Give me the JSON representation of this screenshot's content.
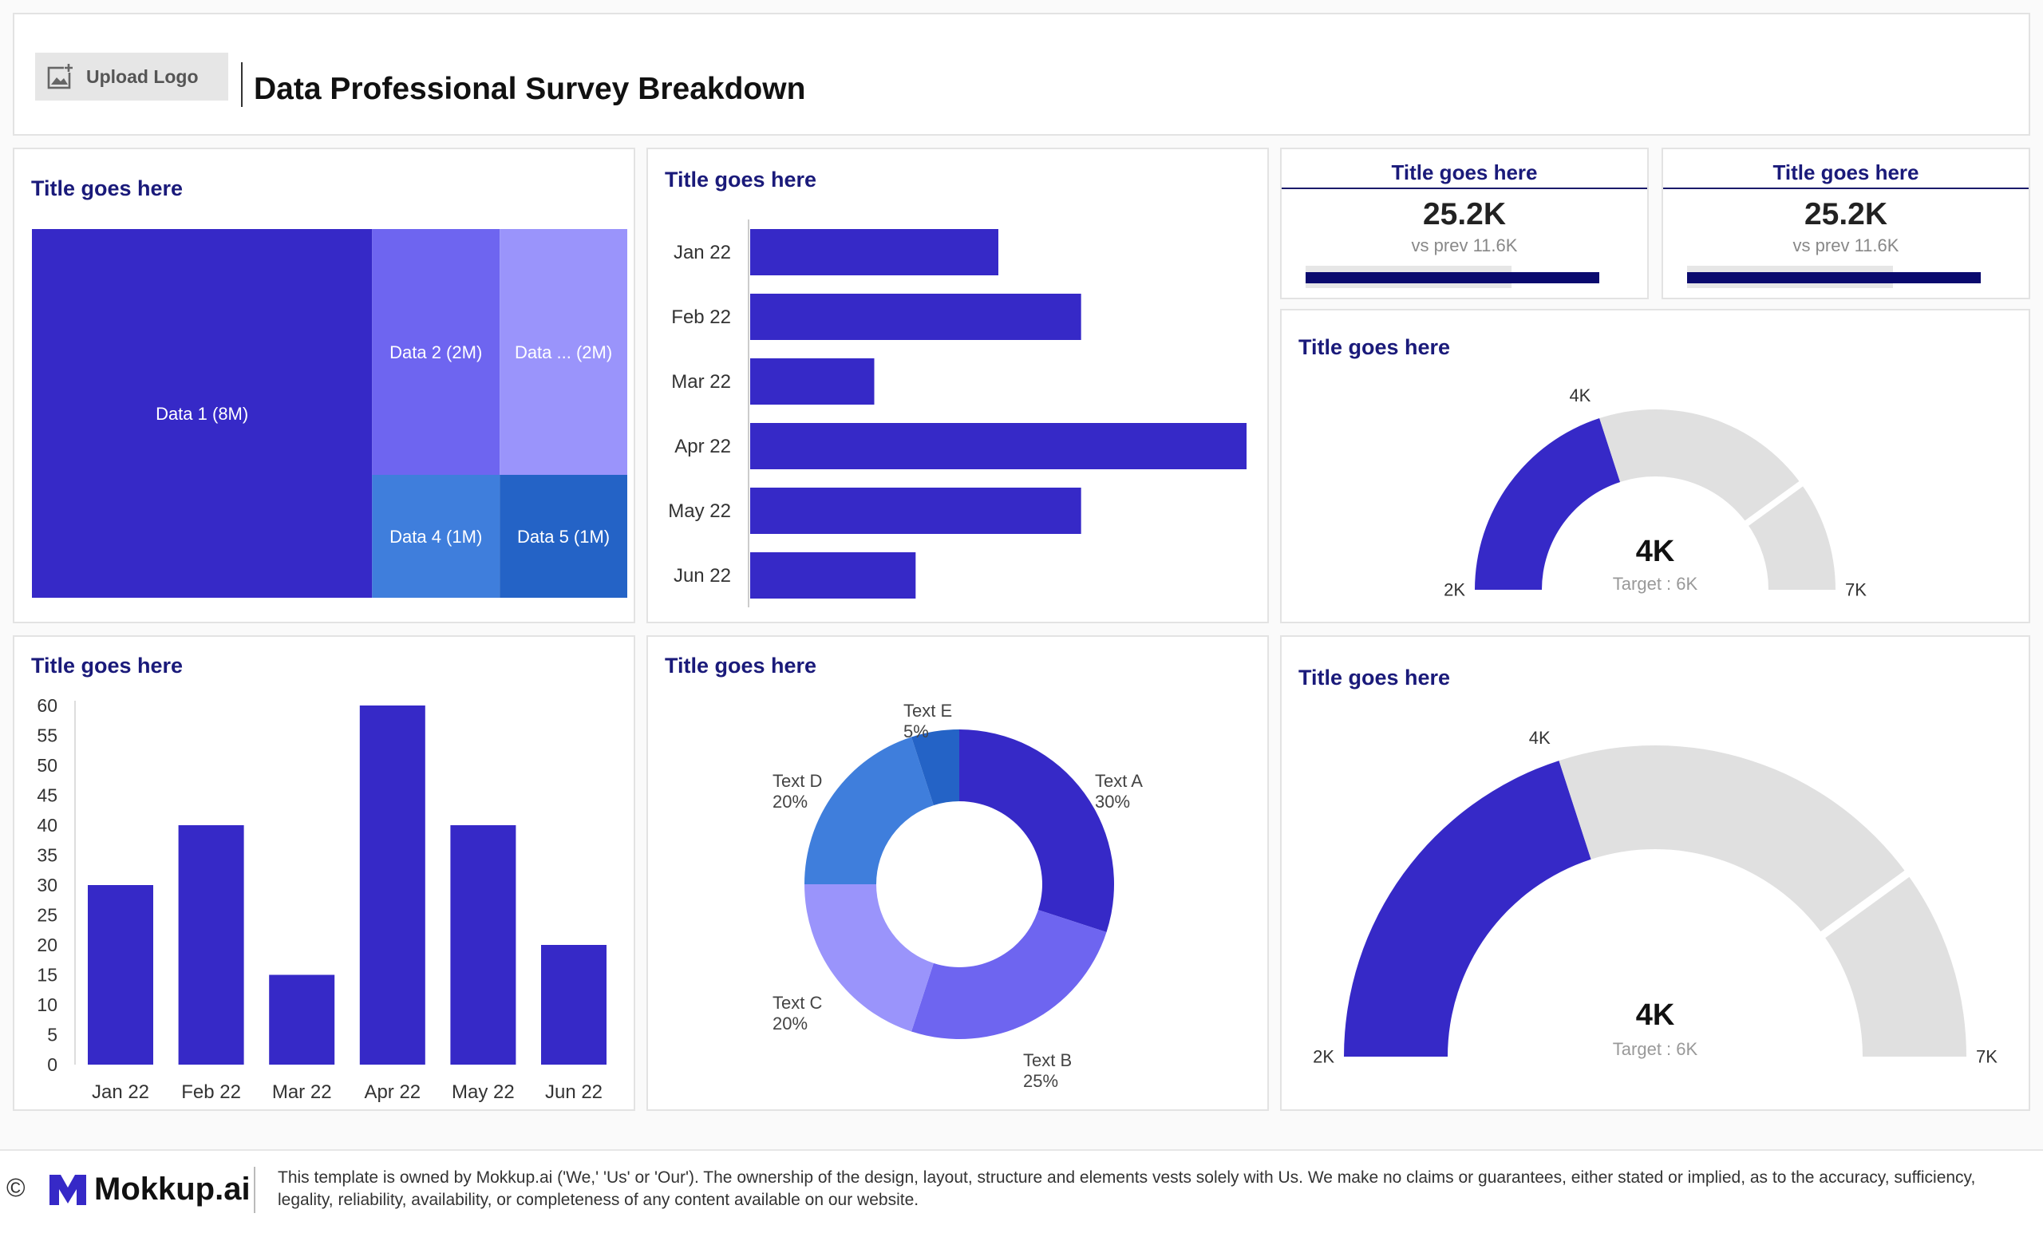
{
  "header": {
    "upload_logo_label": "Upload Logo",
    "title": "Data Professional Survey Breakdown"
  },
  "treemap_card": {
    "title": "Title goes here",
    "chart_data": {
      "type": "treemap",
      "items": [
        {
          "label": "Data 1 (8M)",
          "name": "Data 1",
          "value": 8,
          "color": "#3629c7"
        },
        {
          "label": "Data 2 (2M)",
          "name": "Data 2",
          "value": 2,
          "color": "#6e65f0"
        },
        {
          "label": "Data ... (2M)",
          "name": "Data ...",
          "value": 2,
          "color": "#9a94fb"
        },
        {
          "label": "Data 4 (1M)",
          "name": "Data 4",
          "value": 1,
          "color": "#3f7edc"
        },
        {
          "label": "Data 5 (1M)",
          "name": "Data 5",
          "value": 1,
          "color": "#2463c6"
        }
      ]
    }
  },
  "hbar_card": {
    "title": "Title goes here",
    "chart_data": {
      "type": "bar",
      "orientation": "horizontal",
      "categories": [
        "Jan 22",
        "Feb 22",
        "Mar 22",
        "Apr 22",
        "May 22",
        "Jun 22"
      ],
      "values": [
        30,
        40,
        15,
        60,
        40,
        20
      ],
      "xlim": [
        0,
        60
      ],
      "color": "#3629c7"
    }
  },
  "kpi_cards": [
    {
      "title": "Title goes here",
      "value": "25.2K",
      "subtitle": "vs prev 11.6K"
    },
    {
      "title": "Title goes here",
      "value": "25.2K",
      "subtitle": "vs prev 11.6K"
    }
  ],
  "gauge_small": {
    "title": "Title goes here",
    "value_label": "4K",
    "target_label": "Target : 6K",
    "chart_data": {
      "type": "gauge",
      "min": 2,
      "max": 7,
      "value": 4,
      "target": 6,
      "min_label": "2K",
      "max_label": "7K",
      "value_tick_label": "4K",
      "fill_color": "#3629c7",
      "track_color": "#e0e0e0"
    }
  },
  "vbar_card": {
    "title": "Title goes here",
    "chart_data": {
      "type": "bar",
      "orientation": "vertical",
      "categories": [
        "Jan 22",
        "Feb 22",
        "Mar 22",
        "Apr 22",
        "May 22",
        "Jun 22"
      ],
      "values": [
        30,
        40,
        15,
        60,
        40,
        20
      ],
      "ylim": [
        0,
        60
      ],
      "yticks": [
        "0",
        "5",
        "10",
        "15",
        "20",
        "25",
        "30",
        "35",
        "40",
        "45",
        "50",
        "55",
        "60"
      ],
      "color": "#3629c7"
    }
  },
  "donut_card": {
    "title": "Title goes here",
    "chart_data": {
      "type": "pie",
      "donut": true,
      "slices": [
        {
          "name": "Text A",
          "pct_label": "30%",
          "value": 30,
          "color": "#3629c7"
        },
        {
          "name": "Text B",
          "pct_label": "25%",
          "value": 25,
          "color": "#6e65f0"
        },
        {
          "name": "Text C",
          "pct_label": "20%",
          "value": 20,
          "color": "#9a94fb"
        },
        {
          "name": "Text D",
          "pct_label": "20%",
          "value": 20,
          "color": "#3f7edc"
        },
        {
          "name": "Text E",
          "pct_label": "5%",
          "value": 5,
          "color": "#2463c6"
        }
      ]
    }
  },
  "gauge_large": {
    "title": "Title goes here",
    "value_label": "4K",
    "target_label": "Target : 6K",
    "chart_data": {
      "type": "gauge",
      "min": 2,
      "max": 7,
      "value": 4,
      "target": 6,
      "min_label": "2K",
      "max_label": "7K",
      "value_tick_label": "4K",
      "fill_color": "#3629c7",
      "track_color": "#e0e0e0"
    }
  },
  "footer": {
    "copyright_symbol": "©",
    "brand": "Mokkup.ai",
    "disclaimer": "This template is owned by Mokkup.ai ('We,' 'Us' or 'Our'). The ownership of the design, layout, structure and elements vests solely with Us. We make no claims or guarantees, either stated or implied, as to the accuracy, sufficiency, legality, reliability, availability, or completeness of any content available on our website."
  }
}
